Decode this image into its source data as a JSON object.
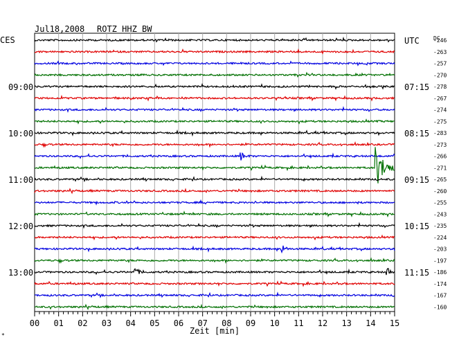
{
  "header": {
    "date": "Jul18,2008",
    "station": "ROTZ HHZ BW",
    "left_tz": "CES",
    "right_tz": "UTC",
    "dc_label": "DC"
  },
  "chart_data": {
    "type": "line",
    "title": "Jul18,2008 ROTZ HHZ BW",
    "xlabel": "Zeit [min]",
    "xlim": [
      0,
      15
    ],
    "x_ticks": [
      "00",
      "01",
      "02",
      "03",
      "04",
      "05",
      "06",
      "07",
      "08",
      "09",
      "10",
      "11",
      "12",
      "13",
      "14",
      "15"
    ],
    "trace_colors": [
      "#000000",
      "#e00000",
      "#0000e0",
      "#007000"
    ],
    "grid": true,
    "left_time_labels": [
      {
        "trace": 4,
        "label": "09:00"
      },
      {
        "trace": 8,
        "label": "10:00"
      },
      {
        "trace": 12,
        "label": "11:00"
      },
      {
        "trace": 16,
        "label": "12:00"
      },
      {
        "trace": 20,
        "label": "13:00"
      }
    ],
    "right_time_labels": [
      {
        "trace": 0,
        "label": "UTC"
      },
      {
        "trace": 4,
        "label": "07:15"
      },
      {
        "trace": 8,
        "label": "08:15"
      },
      {
        "trace": 12,
        "label": "09:15"
      },
      {
        "trace": 16,
        "label": "10:15"
      },
      {
        "trace": 20,
        "label": "11:15"
      }
    ],
    "dc_offsets": [
      -246,
      -263,
      -257,
      -270,
      -278,
      -267,
      -274,
      -275,
      -283,
      -273,
      -266,
      -271,
      -265,
      -260,
      -255,
      -243,
      -235,
      -224,
      -203,
      -197,
      -186,
      -174,
      -167,
      -160
    ],
    "events": [
      {
        "trace": 11,
        "minute": 14.2,
        "type": "earthquake"
      },
      {
        "trace": 10,
        "minute": 8.6,
        "type": "local"
      },
      {
        "trace": 18,
        "minute": 10.3,
        "type": "local"
      },
      {
        "trace": 20,
        "minute": 4.2,
        "type": "local"
      },
      {
        "trace": 20,
        "minute": 14.7,
        "type": "local"
      }
    ]
  }
}
